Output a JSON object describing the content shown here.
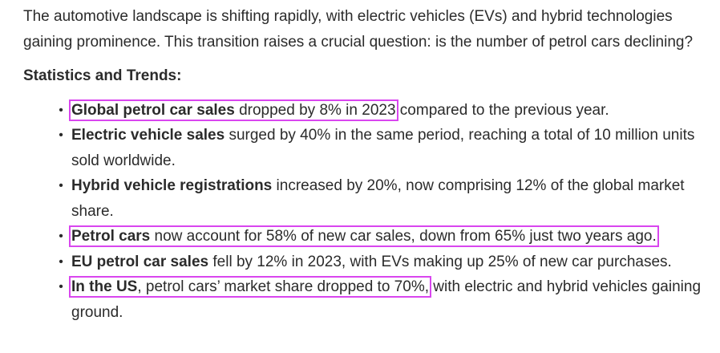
{
  "intro": "The automotive landscape is shifting rapidly, with electric vehicles (EVs) and hybrid technologies gaining prominence. This transition raises a crucial question: is the number of petrol cars declining?",
  "heading": "Statistics and Trends:",
  "bullet_glyph": "•",
  "highlight_color": "#d946ef",
  "items": [
    {
      "hl": "Global petrol car sales",
      "hl_rest": " dropped by 8% in 2023",
      "rest": " compared to the previous year."
    },
    {
      "bold": "Electric vehicle sales",
      "rest": " surged by 40% in the same period, reaching a total of 10 million units sold worldwide."
    },
    {
      "bold": "Hybrid vehicle registrations",
      "rest": " increased by 20%, now comprising 12% of the global market share."
    },
    {
      "hl": "Petrol cars",
      "hl_rest": " now account for 58% of new car sales, down from 65% just two years ago."
    },
    {
      "bold": "EU petrol car sales",
      "rest": " fell by 12% in 2023, with EVs making up 25% of new car purchases."
    },
    {
      "hl": "In the US",
      "hl_rest": ", petrol cars’ market share dropped to 70%,",
      "rest": " with electric and hybrid vehicles gaining ground."
    }
  ]
}
